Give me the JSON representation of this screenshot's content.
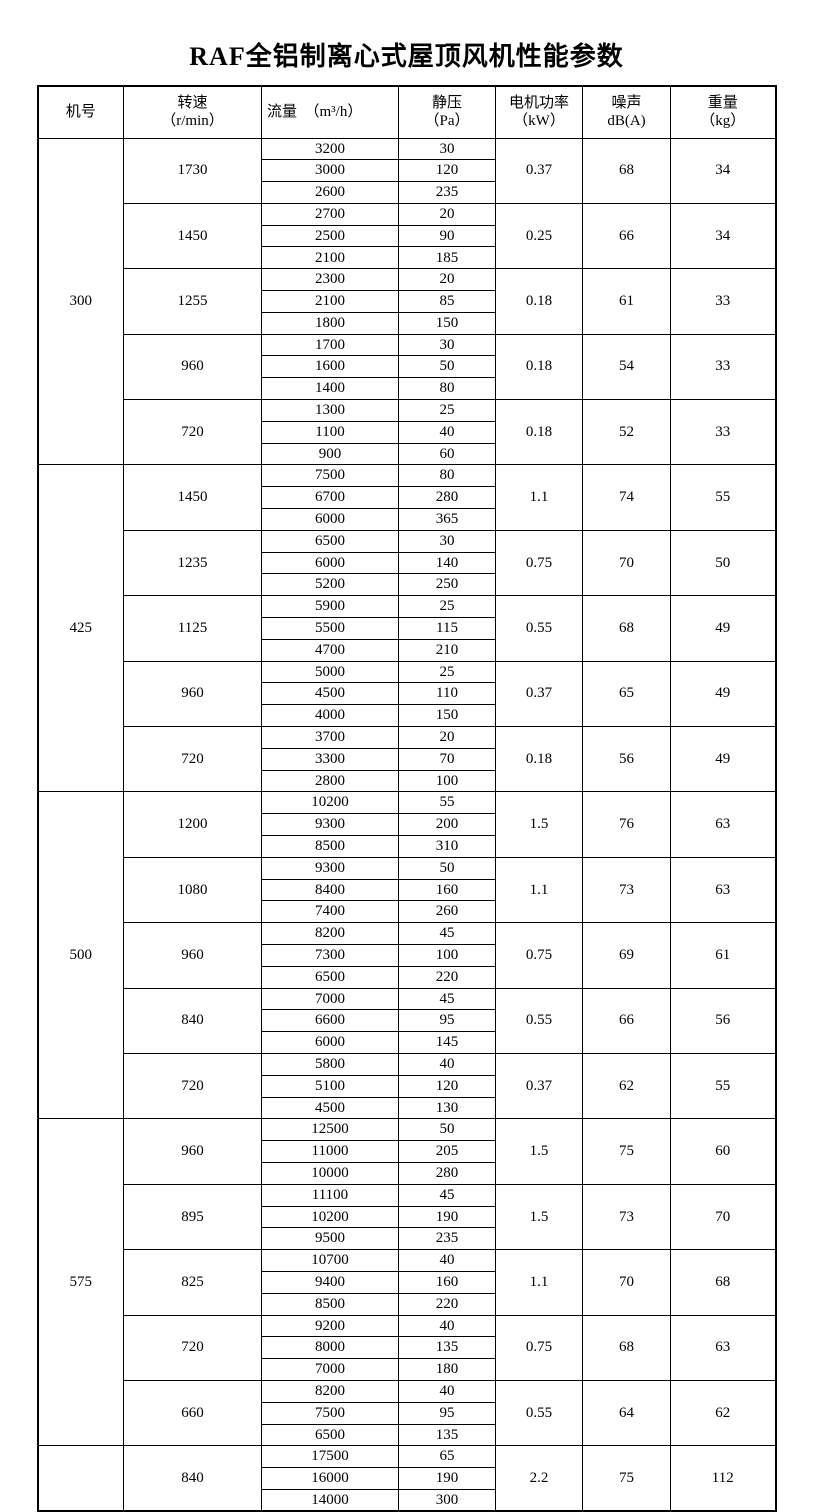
{
  "title": "RAF全铝制离心式屋顶风机性能参数",
  "table": {
    "headers": [
      {
        "key": "model",
        "label": "机号",
        "sub": ""
      },
      {
        "key": "speed",
        "label": "转速",
        "sub": "（r/min）"
      },
      {
        "key": "flow",
        "label": "流量　（m³/h）",
        "sub": "",
        "align": "left"
      },
      {
        "key": "pressure",
        "label": "静压",
        "sub": "（Pa）"
      },
      {
        "key": "power",
        "label": "电机功率",
        "sub": "（kW）"
      },
      {
        "key": "noise",
        "label": "噪声",
        "sub": "dB(A)"
      },
      {
        "key": "weight",
        "label": "重量",
        "sub": "（kg）"
      }
    ],
    "column_meanings": {
      "model": "机号",
      "speed": "转速 (r/min)",
      "flow": "流量 (m³/h)",
      "pressure": "静压 (Pa)",
      "power": "电机功率 (kW)",
      "noise": "噪声 dB(A)",
      "weight": "重量 (kg)"
    },
    "sections": [
      {
        "model": "300",
        "groups": [
          {
            "speed": "1730",
            "points": [
              [
                "3200",
                "30"
              ],
              [
                "3000",
                "120"
              ],
              [
                "2600",
                "235"
              ]
            ],
            "power": "0.37",
            "noise": "68",
            "weight": "34"
          },
          {
            "speed": "1450",
            "points": [
              [
                "2700",
                "20"
              ],
              [
                "2500",
                "90"
              ],
              [
                "2100",
                "185"
              ]
            ],
            "power": "0.25",
            "noise": "66",
            "weight": "34"
          },
          {
            "speed": "1255",
            "points": [
              [
                "2300",
                "20"
              ],
              [
                "2100",
                "85"
              ],
              [
                "1800",
                "150"
              ]
            ],
            "power": "0.18",
            "noise": "61",
            "weight": "33"
          },
          {
            "speed": "960",
            "points": [
              [
                "1700",
                "30"
              ],
              [
                "1600",
                "50"
              ],
              [
                "1400",
                "80"
              ]
            ],
            "power": "0.18",
            "noise": "54",
            "weight": "33"
          },
          {
            "speed": "720",
            "points": [
              [
                "1300",
                "25"
              ],
              [
                "1100",
                "40"
              ],
              [
                "900",
                "60"
              ]
            ],
            "power": "0.18",
            "noise": "52",
            "weight": "33"
          }
        ]
      },
      {
        "model": "425",
        "groups": [
          {
            "speed": "1450",
            "points": [
              [
                "7500",
                "80"
              ],
              [
                "6700",
                "280"
              ],
              [
                "6000",
                "365"
              ]
            ],
            "power": "1.1",
            "noise": "74",
            "weight": "55"
          },
          {
            "speed": "1235",
            "points": [
              [
                "6500",
                "30"
              ],
              [
                "6000",
                "140"
              ],
              [
                "5200",
                "250"
              ]
            ],
            "power": "0.75",
            "noise": "70",
            "weight": "50"
          },
          {
            "speed": "1125",
            "points": [
              [
                "5900",
                "25"
              ],
              [
                "5500",
                "115"
              ],
              [
                "4700",
                "210"
              ]
            ],
            "power": "0.55",
            "noise": "68",
            "weight": "49"
          },
          {
            "speed": "960",
            "points": [
              [
                "5000",
                "25"
              ],
              [
                "4500",
                "110"
              ],
              [
                "4000",
                "150"
              ]
            ],
            "power": "0.37",
            "noise": "65",
            "weight": "49"
          },
          {
            "speed": "720",
            "points": [
              [
                "3700",
                "20"
              ],
              [
                "3300",
                "70"
              ],
              [
                "2800",
                "100"
              ]
            ],
            "power": "0.18",
            "noise": "56",
            "weight": "49"
          }
        ]
      },
      {
        "model": "500",
        "groups": [
          {
            "speed": "1200",
            "points": [
              [
                "10200",
                "55"
              ],
              [
                "9300",
                "200"
              ],
              [
                "8500",
                "310"
              ]
            ],
            "power": "1.5",
            "noise": "76",
            "weight": "63"
          },
          {
            "speed": "1080",
            "points": [
              [
                "9300",
                "50"
              ],
              [
                "8400",
                "160"
              ],
              [
                "7400",
                "260"
              ]
            ],
            "power": "1.1",
            "noise": "73",
            "weight": "63"
          },
          {
            "speed": "960",
            "points": [
              [
                "8200",
                "45"
              ],
              [
                "7300",
                "100"
              ],
              [
                "6500",
                "220"
              ]
            ],
            "power": "0.75",
            "noise": "69",
            "weight": "61"
          },
          {
            "speed": "840",
            "points": [
              [
                "7000",
                "45"
              ],
              [
                "6600",
                "95"
              ],
              [
                "6000",
                "145"
              ]
            ],
            "power": "0.55",
            "noise": "66",
            "weight": "56"
          },
          {
            "speed": "720",
            "points": [
              [
                "5800",
                "40"
              ],
              [
                "5100",
                "120"
              ],
              [
                "4500",
                "130"
              ]
            ],
            "power": "0.37",
            "noise": "62",
            "weight": "55"
          }
        ]
      },
      {
        "model": "575",
        "groups": [
          {
            "speed": "960",
            "points": [
              [
                "12500",
                "50"
              ],
              [
                "11000",
                "205"
              ],
              [
                "10000",
                "280"
              ]
            ],
            "power": "1.5",
            "noise": "75",
            "weight": "60"
          },
          {
            "speed": "895",
            "points": [
              [
                "11100",
                "45"
              ],
              [
                "10200",
                "190"
              ],
              [
                "9500",
                "235"
              ]
            ],
            "power": "1.5",
            "noise": "73",
            "weight": "70"
          },
          {
            "speed": "825",
            "points": [
              [
                "10700",
                "40"
              ],
              [
                "9400",
                "160"
              ],
              [
                "8500",
                "220"
              ]
            ],
            "power": "1.1",
            "noise": "70",
            "weight": "68"
          },
          {
            "speed": "720",
            "points": [
              [
                "9200",
                "40"
              ],
              [
                "8000",
                "135"
              ],
              [
                "7000",
                "180"
              ]
            ],
            "power": "0.75",
            "noise": "68",
            "weight": "63"
          },
          {
            "speed": "660",
            "points": [
              [
                "8200",
                "40"
              ],
              [
                "7500",
                "95"
              ],
              [
                "6500",
                "135"
              ]
            ],
            "power": "0.55",
            "noise": "64",
            "weight": "62"
          }
        ]
      },
      {
        "model": "",
        "groups": [
          {
            "speed": "840",
            "points": [
              [
                "17500",
                "65"
              ],
              [
                "16000",
                "190"
              ],
              [
                "14000",
                "300"
              ]
            ],
            "power": "2.2",
            "noise": "75",
            "weight": "112"
          }
        ]
      }
    ]
  }
}
